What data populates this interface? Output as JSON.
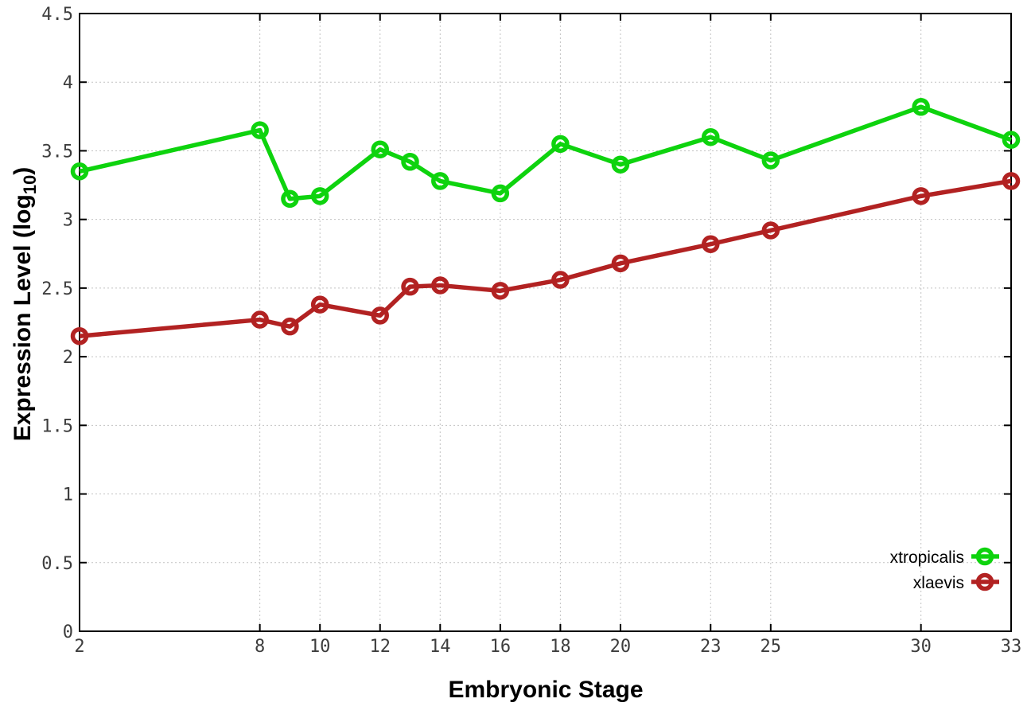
{
  "chart_data": {
    "type": "line",
    "title": "",
    "xlabel": "Embryonic Stage",
    "ylabel": "Expression Level (log10)",
    "ylabel_parts": {
      "prefix": "Expression Level (log",
      "subscript": "10",
      "suffix": ")"
    },
    "grid": true,
    "x_axis": {
      "min": 2,
      "max": 33,
      "tick_values": [
        2,
        8,
        10,
        12,
        14,
        16,
        18,
        20,
        23,
        25,
        30,
        33
      ],
      "tick_labels": [
        "2",
        "8",
        "10",
        "12",
        "14",
        "16",
        "18",
        "20",
        "23",
        "25",
        "30",
        "33"
      ]
    },
    "y_axis": {
      "min": 0,
      "max": 4.5,
      "tick_values": [
        0,
        0.5,
        1,
        1.5,
        2,
        2.5,
        3,
        3.5,
        4,
        4.5
      ],
      "tick_labels": [
        "0",
        "0.5",
        "1",
        "1.5",
        "2",
        "2.5",
        "3",
        "3.5",
        "4",
        "4.5"
      ]
    },
    "x": [
      2,
      8,
      9,
      10,
      12,
      13,
      14,
      16,
      18,
      20,
      23,
      25,
      30,
      33
    ],
    "series": [
      {
        "name": "xtropicalis",
        "color": "#0ed30e",
        "marker": "open-circle",
        "values": [
          3.35,
          3.65,
          3.15,
          3.17,
          3.51,
          3.42,
          3.28,
          3.19,
          3.55,
          3.4,
          3.6,
          3.43,
          3.82,
          3.58
        ]
      },
      {
        "name": "xlaevis",
        "color": "#b22222",
        "marker": "open-circle",
        "values": [
          2.15,
          2.27,
          2.22,
          2.38,
          2.3,
          2.51,
          2.52,
          2.48,
          2.56,
          2.68,
          2.82,
          2.92,
          3.17,
          3.28
        ]
      }
    ],
    "legend": {
      "position": "bottom-right",
      "entries": [
        "xtropicalis",
        "xlaevis"
      ]
    }
  },
  "colors": {
    "background": "#ffffff",
    "plot_border": "#000000",
    "grid": "#c2c2c2",
    "tick_label": "#3d3d3d",
    "axis_title": "#000000",
    "series_green": "#0ed30e",
    "series_red": "#b22222"
  }
}
